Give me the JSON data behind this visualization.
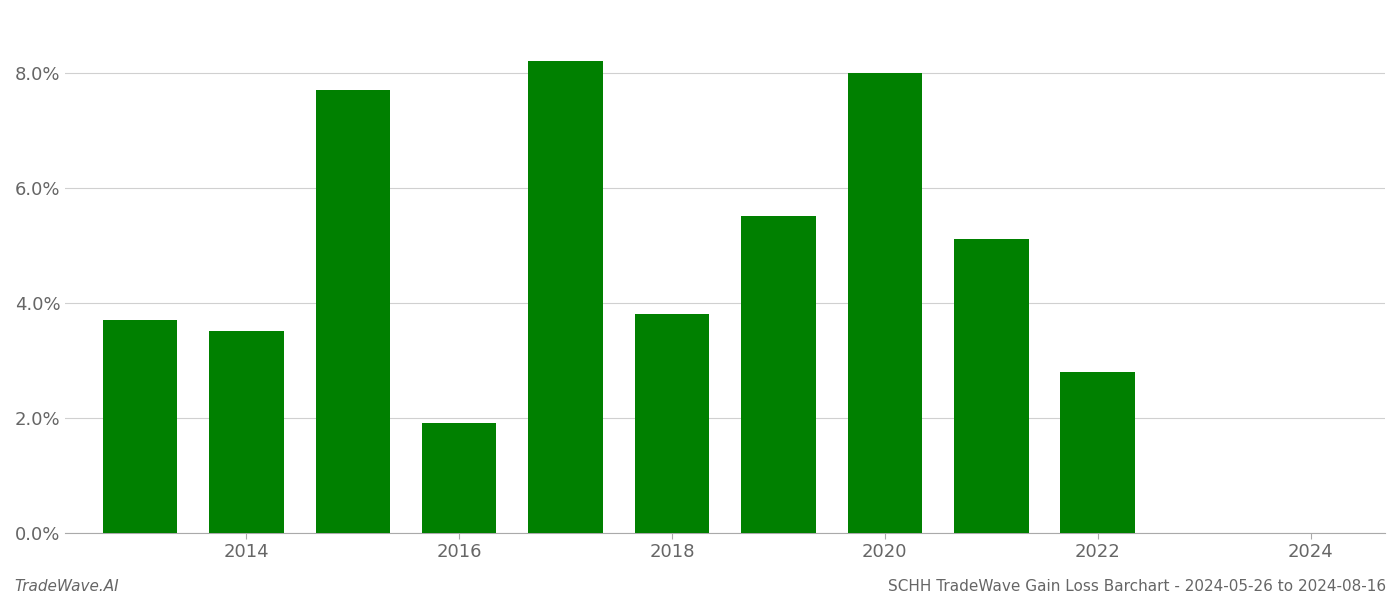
{
  "years": [
    2013,
    2014,
    2015,
    2016,
    2017,
    2018,
    2019,
    2020,
    2021,
    2022,
    2023
  ],
  "values": [
    0.037,
    0.035,
    0.077,
    0.019,
    0.082,
    0.038,
    0.055,
    0.08,
    0.051,
    0.028,
    0.0
  ],
  "bar_color": "#008000",
  "title": "SCHH TradeWave Gain Loss Barchart - 2024-05-26 to 2024-08-16",
  "footer_left": "TradeWave.AI",
  "ylim": [
    0,
    0.09
  ],
  "yticks": [
    0.0,
    0.02,
    0.04,
    0.06,
    0.08
  ],
  "xtick_positions": [
    2014,
    2016,
    2018,
    2020,
    2022,
    2024
  ],
  "xtick_labels": [
    "2014",
    "2016",
    "2018",
    "2020",
    "2022",
    "2024"
  ],
  "xlim_left": 2012.3,
  "xlim_right": 2024.7,
  "background_color": "#ffffff",
  "grid_color": "#d0d0d0",
  "bar_width": 0.7
}
